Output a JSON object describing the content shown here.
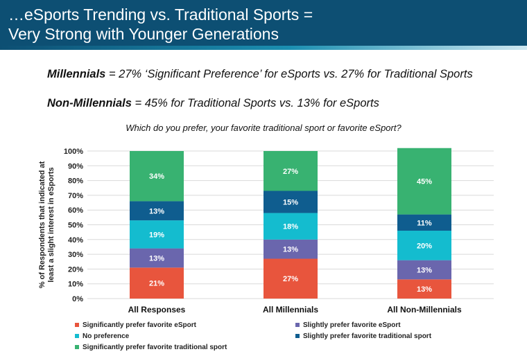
{
  "header": {
    "title_line1": "…eSports Trending vs. Traditional Sports =",
    "title_line2": "Very Strong with Younger Generations"
  },
  "headlines": {
    "millennials_label": "Millennials",
    "millennials_text": " = 27% ‘Significant Preference’ for eSports vs. 27% for Traditional Sports",
    "nonmillennials_label": "Non-Millennials",
    "nonmillennials_text": " = 45% for Traditional Sports vs. 13% for eSports"
  },
  "question": "Which do you prefer, your favorite traditional sport or favorite eSport?",
  "chart_data": {
    "type": "bar",
    "stacked": true,
    "percent_stacked": true,
    "categories": [
      "All Responses",
      "All Millennials",
      "All Non-Millennials"
    ],
    "ylabel": "% of Respondents that indicated at least a slight interest in eSports",
    "ylim": [
      0,
      100
    ],
    "yticks": [
      "0%",
      "10%",
      "20%",
      "30%",
      "40%",
      "50%",
      "60%",
      "70%",
      "80%",
      "90%",
      "100%"
    ],
    "grid": true,
    "legend_position": "bottom",
    "series": [
      {
        "name": "Significantly prefer favorite eSport",
        "color": "#e8553d",
        "values": [
          21,
          27,
          13
        ],
        "labels": [
          "21%",
          "27%",
          "13%"
        ]
      },
      {
        "name": "Slightly prefer favorite eSport",
        "color": "#6a66ad",
        "values": [
          13,
          13,
          13
        ],
        "labels": [
          "13%",
          "13%",
          "13%"
        ]
      },
      {
        "name": "No preference",
        "color": "#14bccf",
        "values": [
          19,
          18,
          20
        ],
        "labels": [
          "19%",
          "18%",
          "20%"
        ]
      },
      {
        "name": "Slightly prefer favorite traditional sport",
        "color": "#0f5d8f",
        "values": [
          13,
          15,
          11
        ],
        "labels": [
          "13%",
          "15%",
          "11%"
        ]
      },
      {
        "name": "Significantly prefer favorite traditional sport",
        "color": "#38b271",
        "values": [
          34,
          27,
          45
        ],
        "labels": [
          "34%",
          "27%",
          "45%"
        ]
      }
    ]
  }
}
